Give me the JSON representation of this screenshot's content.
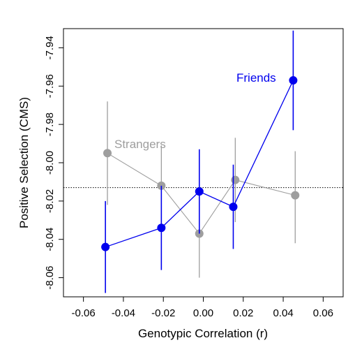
{
  "chart_data": {
    "type": "scatter",
    "title": "",
    "xlabel": "Genotypic Correlation (r)",
    "ylabel": "Positive Selection (CMS)",
    "xlim": [
      -0.07,
      0.07
    ],
    "ylim": [
      -8.07,
      -7.93
    ],
    "x_ticks": [
      -0.06,
      -0.04,
      -0.02,
      0.0,
      0.02,
      0.04,
      0.06
    ],
    "x_tick_labels": [
      "-0.06",
      "-0.04",
      "-0.02",
      "0.00",
      "0.02",
      "0.04",
      "0.06"
    ],
    "y_ticks": [
      -7.94,
      -7.96,
      -7.98,
      -8.0,
      -8.02,
      -8.04,
      -8.06
    ],
    "y_tick_labels": [
      "-7.94",
      "-7.96",
      "-7.98",
      "-8.00",
      "-8.02",
      "-8.04",
      "-8.06"
    ],
    "reference_line": {
      "y": -8.013,
      "style": "dotted"
    },
    "grid": false,
    "series": [
      {
        "name": "Strangers",
        "color": "#9e9e9e",
        "x": [
          -0.048,
          -0.021,
          -0.002,
          0.016,
          0.046
        ],
        "y": [
          -7.995,
          -8.012,
          -8.037,
          -8.009,
          -8.017
        ],
        "ci_low": [
          -8.022,
          -8.033,
          -8.06,
          -8.031,
          -8.042
        ],
        "ci_high": [
          -7.968,
          -7.991,
          -8.014,
          -7.987,
          -7.994
        ]
      },
      {
        "name": "Friends",
        "color": "#0000ee",
        "x": [
          -0.049,
          -0.021,
          -0.002,
          0.015,
          0.045
        ],
        "y": [
          -8.044,
          -8.034,
          -8.015,
          -8.023,
          -7.957
        ],
        "ci_low": [
          -8.068,
          -8.056,
          -8.037,
          -8.045,
          -7.983
        ],
        "ci_high": [
          -8.02,
          -8.012,
          -7.993,
          -8.001,
          -7.931
        ]
      }
    ]
  }
}
